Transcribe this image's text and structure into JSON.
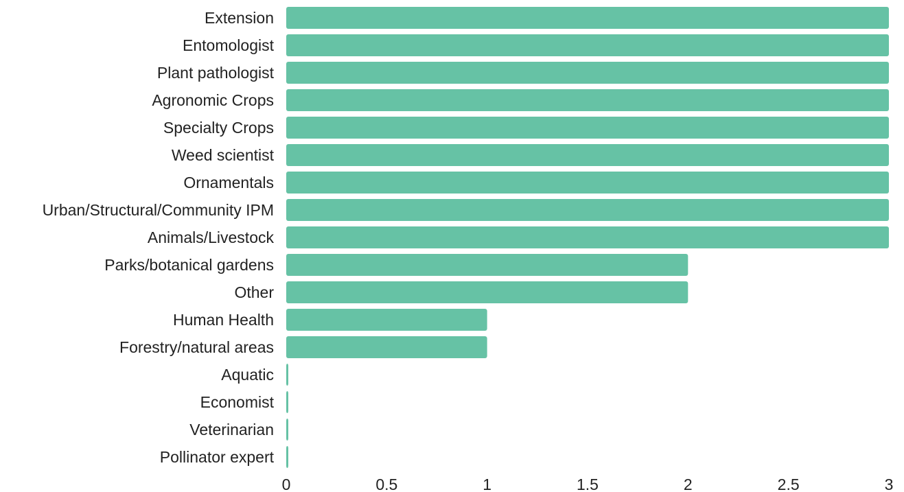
{
  "chart_data": {
    "type": "bar",
    "orientation": "horizontal",
    "title": "",
    "xlabel": "",
    "ylabel": "",
    "categories": [
      "Extension",
      "Entomologist",
      "Plant pathologist",
      "Agronomic Crops",
      "Specialty Crops",
      "Weed scientist",
      "Ornamentals",
      "Urban/Structural/Community IPM",
      "Animals/Livestock",
      "Parks/botanical gardens",
      "Other",
      "Human Health",
      "Forestry/natural areas",
      "Aquatic",
      "Economist",
      "Veterinarian",
      "Pollinator expert"
    ],
    "values": [
      3,
      3,
      3,
      3,
      3,
      3,
      3,
      3,
      3,
      2,
      2,
      1,
      1,
      0,
      0,
      0,
      0
    ],
    "xlim": [
      0,
      3
    ],
    "xticks": [
      0,
      0.5,
      1,
      1.5,
      2,
      2.5,
      3
    ],
    "xtick_labels": [
      "0",
      "0.5",
      "1",
      "1.5",
      "2",
      "2.5",
      "3"
    ],
    "grid": false,
    "legend": "none",
    "bar_color": "#66c2a5"
  }
}
